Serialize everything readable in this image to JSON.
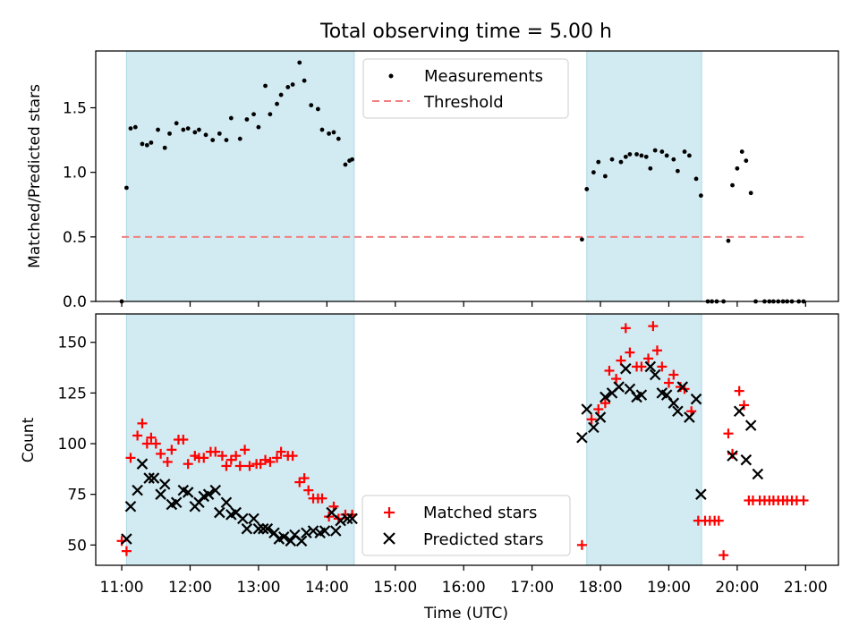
{
  "chart_data": [
    {
      "type": "scatter",
      "title": "Total observing time = 5.00 h",
      "xlabel": "",
      "ylabel": "Matched/Predicted stars",
      "xlim": [
        10.62,
        21.48
      ],
      "ylim": [
        0.0,
        1.94
      ],
      "yticks": [
        0.0,
        0.5,
        1.0,
        1.5
      ],
      "ytick_labels": [
        "0.0",
        "0.5",
        "1.0",
        "1.5"
      ],
      "xticks": [
        11,
        12,
        13,
        14,
        15,
        16,
        17,
        18,
        19,
        20,
        21
      ],
      "shaded_intervals": [
        [
          11.07,
          14.4
        ],
        [
          17.8,
          19.48
        ]
      ],
      "shade_color": "#add8e6",
      "legend_position": "top-center",
      "grid": false,
      "series": [
        {
          "name": "Measurements",
          "marker": "dot",
          "color": "#000000",
          "x": [
            11.0,
            11.07,
            11.13,
            11.2,
            11.3,
            11.37,
            11.43,
            11.53,
            11.63,
            11.7,
            11.8,
            11.9,
            11.97,
            12.07,
            12.13,
            12.23,
            12.33,
            12.43,
            12.53,
            12.6,
            12.73,
            12.83,
            12.93,
            13.0,
            13.1,
            13.17,
            13.27,
            13.33,
            13.43,
            13.5,
            13.6,
            13.67,
            13.77,
            13.87,
            13.93,
            14.03,
            14.1,
            14.17,
            14.27,
            14.33,
            14.37,
            17.73,
            17.8,
            17.9,
            17.97,
            18.07,
            18.17,
            18.3,
            18.37,
            18.43,
            18.53,
            18.6,
            18.67,
            18.73,
            18.8,
            18.9,
            18.97,
            19.07,
            19.13,
            19.23,
            19.3,
            19.4,
            19.47,
            19.57,
            19.63,
            19.7,
            19.8,
            19.87,
            19.93,
            20.0,
            20.07,
            20.13,
            20.2,
            20.27,
            20.4,
            20.47,
            20.53,
            20.6,
            20.67,
            20.73,
            20.8,
            20.9,
            20.97
          ],
          "y": [
            0.0,
            0.88,
            1.34,
            1.35,
            1.22,
            1.21,
            1.23,
            1.33,
            1.19,
            1.3,
            1.38,
            1.33,
            1.34,
            1.31,
            1.33,
            1.29,
            1.25,
            1.3,
            1.25,
            1.42,
            1.26,
            1.41,
            1.45,
            1.35,
            1.67,
            1.45,
            1.53,
            1.6,
            1.66,
            1.68,
            1.85,
            1.71,
            1.52,
            1.49,
            1.33,
            1.3,
            1.31,
            1.26,
            1.06,
            1.09,
            1.1,
            0.48,
            0.87,
            1.0,
            1.08,
            0.97,
            1.1,
            1.08,
            1.12,
            1.14,
            1.14,
            1.13,
            1.12,
            1.03,
            1.17,
            1.16,
            1.13,
            1.1,
            1.01,
            1.16,
            1.13,
            0.95,
            0.82,
            0.0,
            0.0,
            0.0,
            0.0,
            0.47,
            0.9,
            1.03,
            1.16,
            1.09,
            0.84,
            0.0,
            0.0,
            0.0,
            0.0,
            0.0,
            0.0,
            0.0,
            0.0,
            0.0,
            0.0
          ]
        },
        {
          "name": "Threshold",
          "marker": "dashed-line",
          "color": "#f08080",
          "x": [
            11.0,
            21.0
          ],
          "y": [
            0.5,
            0.5
          ]
        }
      ]
    },
    {
      "type": "scatter",
      "title": "",
      "xlabel": "Time (UTC)",
      "ylabel": "Count",
      "xlim": [
        10.62,
        21.48
      ],
      "ylim": [
        40,
        164
      ],
      "yticks": [
        50,
        75,
        100,
        125,
        150
      ],
      "ytick_labels": [
        "50",
        "75",
        "100",
        "125",
        "150"
      ],
      "xticks": [
        11,
        12,
        13,
        14,
        15,
        16,
        17,
        18,
        19,
        20,
        21
      ],
      "xtick_labels": [
        "11:00",
        "12:00",
        "13:00",
        "14:00",
        "15:00",
        "16:00",
        "17:00",
        "18:00",
        "19:00",
        "20:00",
        "21:00"
      ],
      "shaded_intervals": [
        [
          11.07,
          14.4
        ],
        [
          17.8,
          19.48
        ]
      ],
      "shade_color": "#add8e6",
      "legend_position": "bottom-center",
      "grid": false,
      "series": [
        {
          "name": "Matched stars",
          "marker": "plus",
          "color": "#ff0000",
          "x": [
            11.0,
            11.07,
            11.13,
            11.23,
            11.3,
            11.37,
            11.43,
            11.5,
            11.57,
            11.67,
            11.73,
            11.83,
            11.9,
            11.97,
            12.07,
            12.13,
            12.2,
            12.3,
            12.37,
            12.47,
            12.53,
            12.6,
            12.67,
            12.73,
            12.8,
            12.87,
            12.97,
            13.03,
            13.1,
            13.17,
            13.27,
            13.33,
            13.43,
            13.5,
            13.6,
            13.67,
            13.73,
            13.8,
            13.87,
            13.93,
            14.03,
            14.1,
            14.17,
            14.27,
            14.37,
            17.73,
            17.87,
            17.97,
            18.07,
            18.13,
            18.23,
            18.3,
            18.37,
            18.43,
            18.53,
            18.6,
            18.7,
            18.77,
            18.83,
            18.9,
            19.0,
            19.07,
            19.17,
            19.23,
            19.33,
            19.43,
            19.53,
            19.6,
            19.67,
            19.73,
            19.8,
            19.87,
            19.93,
            20.03,
            20.1,
            20.17,
            20.23,
            20.33,
            20.4,
            20.47,
            20.53,
            20.6,
            20.67,
            20.73,
            20.8,
            20.87,
            20.97
          ],
          "y": [
            52,
            47,
            93,
            104,
            110,
            100,
            103,
            100,
            95,
            91,
            97,
            102,
            102,
            90,
            94,
            93,
            93,
            96,
            96,
            94,
            89,
            92,
            94,
            89,
            97,
            89,
            90,
            90,
            92,
            91,
            93,
            96,
            94,
            94,
            81,
            83,
            77,
            73,
            73,
            73,
            64,
            69,
            63,
            65,
            65,
            50,
            112,
            117,
            120,
            136,
            132,
            141,
            157,
            145,
            138,
            138,
            142,
            158,
            146,
            138,
            130,
            134,
            128,
            127,
            116,
            62,
            62,
            62,
            62,
            62,
            45,
            105,
            95,
            126,
            119,
            72,
            72,
            72,
            72,
            72,
            72,
            72,
            72,
            72,
            72,
            72,
            72
          ]
        },
        {
          "name": "Predicted stars",
          "marker": "x",
          "color": "#000000",
          "x": [
            11.07,
            11.13,
            11.23,
            11.3,
            11.4,
            11.47,
            11.57,
            11.63,
            11.73,
            11.8,
            11.9,
            11.97,
            12.07,
            12.13,
            12.2,
            12.27,
            12.37,
            12.43,
            12.53,
            12.6,
            12.67,
            12.77,
            12.83,
            12.93,
            13.0,
            13.07,
            13.13,
            13.23,
            13.3,
            13.37,
            13.47,
            13.53,
            13.63,
            13.7,
            13.8,
            13.9,
            13.97,
            14.07,
            14.13,
            14.2,
            14.3,
            14.37,
            17.73,
            17.8,
            17.9,
            18.0,
            18.07,
            18.17,
            18.27,
            18.37,
            18.43,
            18.53,
            18.6,
            18.73,
            18.8,
            18.9,
            18.97,
            19.07,
            19.13,
            19.2,
            19.3,
            19.4,
            19.47,
            19.93,
            20.03,
            20.13,
            20.2,
            20.3
          ],
          "y": [
            53,
            69,
            77,
            90,
            83,
            83,
            75,
            80,
            70,
            71,
            77,
            76,
            69,
            71,
            74,
            75,
            77,
            66,
            71,
            65,
            66,
            63,
            58,
            63,
            58,
            58,
            58,
            56,
            53,
            54,
            52,
            55,
            52,
            56,
            57,
            56,
            57,
            66,
            57,
            62,
            63,
            63,
            103,
            117,
            108,
            113,
            123,
            125,
            128,
            137,
            127,
            123,
            124,
            138,
            134,
            125,
            124,
            120,
            116,
            128,
            113,
            122,
            75,
            94,
            116,
            92,
            109,
            85
          ]
        }
      ]
    }
  ]
}
